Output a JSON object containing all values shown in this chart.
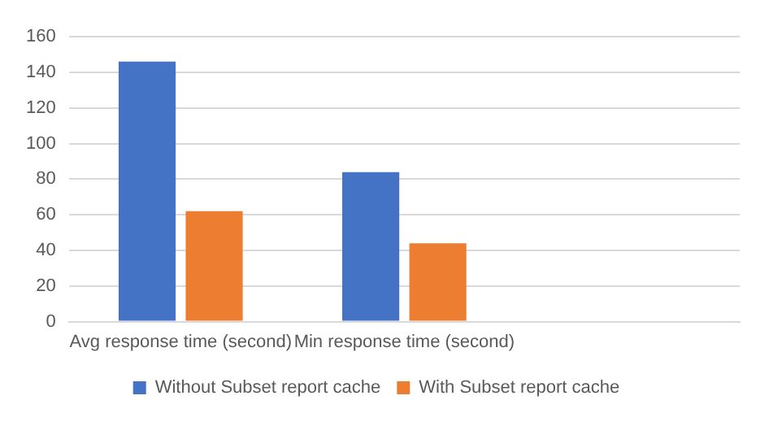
{
  "chart_data": {
    "type": "bar",
    "categories": [
      "Avg response time (second)",
      "Min response time (second)",
      null
    ],
    "series": [
      {
        "name": "Without Subset report cache",
        "color": "#4472c4",
        "values": [
          146,
          84,
          null
        ]
      },
      {
        "name": "With Subset report cache",
        "color": "#ed7d31",
        "values": [
          62,
          44,
          null
        ]
      }
    ],
    "ylim": [
      0,
      160
    ],
    "yticks": [
      0,
      20,
      40,
      60,
      80,
      100,
      120,
      140,
      160
    ],
    "grid": "y",
    "legend": "bottom"
  }
}
